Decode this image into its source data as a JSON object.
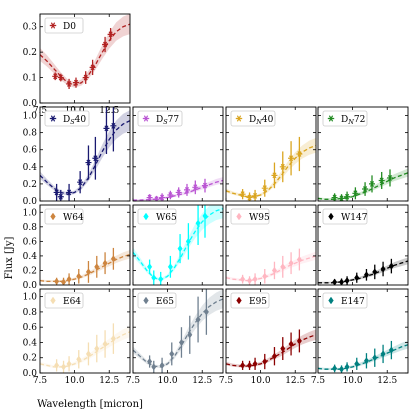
{
  "figure": {
    "ylabel": "Flux [Jy]",
    "xlabel": "Wavelength [micron]",
    "xticks": [
      "7.5",
      "10.0",
      "12.5"
    ],
    "yticks_top": [
      "0.0",
      "0.1",
      "0.2",
      "0.3"
    ],
    "yticks": [
      "0.0",
      "0.2",
      "0.4",
      "0.6",
      "0.8",
      "1.0"
    ]
  },
  "chart_data": [
    {
      "type": "scatter",
      "legend": "D0",
      "label": "D0",
      "marker": "x",
      "color": "#b22222",
      "xlim": [
        7.5,
        14
      ],
      "ylim": [
        0,
        0.35
      ],
      "x": [
        8.6,
        9.0,
        9.6,
        10.1,
        10.8,
        11.3,
        12.2,
        12.6
      ],
      "y": [
        0.105,
        0.1,
        0.075,
        0.08,
        0.1,
        0.14,
        0.23,
        0.27
      ],
      "err": [
        0.015,
        0.015,
        0.02,
        0.02,
        0.025,
        0.03,
        0.03,
        0.025
      ],
      "model_x": [
        7.5,
        8,
        8.5,
        9,
        9.5,
        10,
        10.5,
        11,
        11.5,
        12,
        12.5,
        13,
        13.5,
        14
      ],
      "model_y": [
        0.19,
        0.165,
        0.135,
        0.105,
        0.08,
        0.07,
        0.08,
        0.11,
        0.15,
        0.2,
        0.245,
        0.28,
        0.3,
        0.31
      ]
    },
    {
      "type": "scatter",
      "legend": "D_S40",
      "label": "D$_S$40",
      "marker": "x",
      "color": "#191970",
      "xlim": [
        7.5,
        14
      ],
      "ylim": [
        0,
        1.1
      ],
      "x": [
        8.7,
        9.0,
        9.6,
        10.4,
        11.0,
        11.5,
        12.3,
        12.8
      ],
      "y": [
        0.1,
        0.05,
        0.1,
        0.22,
        0.45,
        0.5,
        0.85,
        0.88
      ],
      "err": [
        0.1,
        0.08,
        0.1,
        0.13,
        0.2,
        0.25,
        0.3,
        0.3
      ],
      "model_x": [
        7.5,
        8,
        8.5,
        9,
        9.5,
        10,
        10.5,
        11,
        11.5,
        12,
        12.5,
        13,
        13.5,
        14
      ],
      "model_y": [
        0.3,
        0.22,
        0.15,
        0.1,
        0.08,
        0.1,
        0.16,
        0.27,
        0.42,
        0.58,
        0.72,
        0.83,
        0.9,
        0.94
      ]
    },
    {
      "type": "scatter",
      "legend": "D_S77",
      "label": "D$_S$77",
      "marker": "x",
      "color": "#ba55d3",
      "xlim": [
        7.5,
        14
      ],
      "ylim": [
        0,
        1.1
      ],
      "x": [
        8.7,
        9.2,
        9.6,
        10.2,
        10.8,
        11.4,
        12.0,
        12.7
      ],
      "y": [
        0.04,
        0.02,
        0.04,
        0.07,
        0.1,
        0.13,
        0.16,
        0.18
      ],
      "err": [
        0.04,
        0.04,
        0.05,
        0.05,
        0.06,
        0.07,
        0.08,
        0.08
      ],
      "model_x": [
        7.5,
        8,
        8.5,
        9,
        9.5,
        10,
        10.5,
        11,
        11.5,
        12,
        12.5,
        13,
        13.5,
        14
      ],
      "model_y": [
        0.01,
        0.01,
        0.015,
        0.02,
        0.03,
        0.04,
        0.06,
        0.08,
        0.1,
        0.13,
        0.16,
        0.19,
        0.22,
        0.24
      ]
    },
    {
      "type": "scatter",
      "legend": "D_N40",
      "label": "D$_N$40",
      "marker": "x",
      "color": "#daa520",
      "xlim": [
        7.5,
        14
      ],
      "ylim": [
        0,
        1.1
      ],
      "x": [
        8.7,
        9.2,
        9.6,
        10.3,
        11.0,
        11.6,
        12.2,
        12.8
      ],
      "y": [
        0.08,
        0.04,
        0.06,
        0.15,
        0.3,
        0.4,
        0.5,
        0.55
      ],
      "err": [
        0.06,
        0.06,
        0.07,
        0.1,
        0.15,
        0.18,
        0.2,
        0.2
      ],
      "model_x": [
        7.5,
        8,
        8.5,
        9,
        9.5,
        10,
        10.5,
        11,
        11.5,
        12,
        12.5,
        13,
        13.5,
        14
      ],
      "model_y": [
        0.12,
        0.09,
        0.07,
        0.05,
        0.05,
        0.07,
        0.12,
        0.2,
        0.3,
        0.41,
        0.5,
        0.57,
        0.62,
        0.65
      ]
    },
    {
      "type": "scatter",
      "legend": "D_N72",
      "label": "D$_N$72",
      "marker": "x",
      "color": "#228b22",
      "xlim": [
        7.5,
        14
      ],
      "ylim": [
        0,
        1.1
      ],
      "x": [
        8.7,
        9.2,
        9.6,
        10.2,
        10.9,
        11.4,
        12.1,
        12.7
      ],
      "y": [
        0.04,
        0.03,
        0.05,
        0.09,
        0.14,
        0.2,
        0.24,
        0.27
      ],
      "err": [
        0.05,
        0.05,
        0.06,
        0.07,
        0.08,
        0.1,
        0.1,
        0.1
      ],
      "model_x": [
        7.5,
        8,
        8.5,
        9,
        9.5,
        10,
        10.5,
        11,
        11.5,
        12,
        12.5,
        13,
        13.5,
        14
      ],
      "model_y": [
        0.03,
        0.02,
        0.02,
        0.025,
        0.035,
        0.05,
        0.08,
        0.11,
        0.15,
        0.19,
        0.23,
        0.27,
        0.3,
        0.33
      ]
    },
    {
      "type": "scatter",
      "legend": "W64",
      "label": "W64",
      "marker": "diamond",
      "color": "#cd853f",
      "xlim": [
        7.5,
        14
      ],
      "ylim": [
        0,
        1.1
      ],
      "x": [
        8.7,
        9.2,
        9.6,
        10.3,
        11.0,
        11.6,
        12.2,
        12.8
      ],
      "y": [
        0.05,
        0.04,
        0.08,
        0.12,
        0.18,
        0.25,
        0.3,
        0.36
      ],
      "err": [
        0.05,
        0.06,
        0.08,
        0.1,
        0.15,
        0.15,
        0.15,
        0.15
      ],
      "model_x": [
        7.5,
        8,
        8.5,
        9,
        9.5,
        10,
        10.5,
        11,
        11.5,
        12,
        12.5,
        13,
        13.5,
        14
      ],
      "model_y": [
        0.06,
        0.05,
        0.05,
        0.05,
        0.06,
        0.08,
        0.11,
        0.15,
        0.2,
        0.25,
        0.3,
        0.35,
        0.39,
        0.42
      ]
    },
    {
      "type": "scatter",
      "legend": "W65",
      "label": "W65",
      "marker": "diamond",
      "color": "#00ffff",
      "xlim": [
        7.5,
        14
      ],
      "ylim": [
        0,
        1.1
      ],
      "x": [
        8.7,
        9.0,
        9.5,
        10.2,
        10.9,
        11.5,
        12.2,
        12.7
      ],
      "y": [
        0.25,
        0.1,
        0.08,
        0.25,
        0.5,
        0.6,
        0.85,
        0.95
      ],
      "err": [
        0.1,
        0.1,
        0.1,
        0.15,
        0.2,
        0.25,
        0.3,
        0.3
      ],
      "model_x": [
        7.5,
        8,
        8.5,
        9,
        9.5,
        10,
        10.5,
        11,
        11.5,
        12,
        12.5,
        13,
        13.5,
        14
      ],
      "model_y": [
        0.45,
        0.33,
        0.2,
        0.1,
        0.07,
        0.12,
        0.24,
        0.4,
        0.58,
        0.74,
        0.87,
        0.96,
        1.02,
        1.05
      ]
    },
    {
      "type": "scatter",
      "legend": "W95",
      "label": "W95",
      "marker": "diamond",
      "color": "#ffb6c1",
      "xlim": [
        7.5,
        14
      ],
      "ylim": [
        0,
        1.1
      ],
      "x": [
        8.7,
        9.2,
        9.6,
        10.3,
        11.0,
        11.6,
        12.2,
        12.8
      ],
      "y": [
        0.08,
        0.06,
        0.08,
        0.12,
        0.2,
        0.25,
        0.3,
        0.35
      ],
      "err": [
        0.06,
        0.06,
        0.08,
        0.1,
        0.12,
        0.15,
        0.15,
        0.15
      ],
      "model_x": [
        7.5,
        8,
        8.5,
        9,
        9.5,
        10,
        10.5,
        11,
        11.5,
        12,
        12.5,
        13,
        13.5,
        14
      ],
      "model_y": [
        0.1,
        0.08,
        0.07,
        0.06,
        0.07,
        0.09,
        0.12,
        0.16,
        0.21,
        0.26,
        0.3,
        0.34,
        0.37,
        0.4
      ]
    },
    {
      "type": "scatter",
      "legend": "W147",
      "label": "W147",
      "marker": "diamond",
      "color": "#000000",
      "xlim": [
        7.5,
        14
      ],
      "ylim": [
        0,
        1.1
      ],
      "x": [
        8.7,
        9.2,
        9.6,
        10.3,
        11.0,
        11.6,
        12.2,
        12.8
      ],
      "y": [
        0.04,
        0.04,
        0.06,
        0.1,
        0.14,
        0.18,
        0.22,
        0.26
      ],
      "err": [
        0.04,
        0.05,
        0.06,
        0.07,
        0.08,
        0.1,
        0.1,
        0.1
      ],
      "model_x": [
        7.5,
        8,
        8.5,
        9,
        9.5,
        10,
        10.5,
        11,
        11.5,
        12,
        12.5,
        13,
        13.5,
        14
      ],
      "model_y": [
        0.03,
        0.03,
        0.03,
        0.04,
        0.05,
        0.07,
        0.09,
        0.12,
        0.15,
        0.19,
        0.23,
        0.27,
        0.3,
        0.33
      ]
    },
    {
      "type": "scatter",
      "legend": "E64",
      "label": "E64",
      "marker": "diamond",
      "color": "#f5deb3",
      "xlim": [
        7.5,
        14
      ],
      "ylim": [
        0,
        1.1
      ],
      "x": [
        8.7,
        9.2,
        9.6,
        10.3,
        11.0,
        11.6,
        12.2,
        12.8
      ],
      "y": [
        0.1,
        0.08,
        0.12,
        0.18,
        0.25,
        0.32,
        0.38,
        0.45
      ],
      "err": [
        0.08,
        0.08,
        0.1,
        0.12,
        0.15,
        0.18,
        0.18,
        0.2
      ],
      "model_x": [
        7.5,
        8,
        8.5,
        9,
        9.5,
        10,
        10.5,
        11,
        11.5,
        12,
        12.5,
        13,
        13.5,
        14
      ],
      "model_y": [
        0.12,
        0.1,
        0.08,
        0.08,
        0.09,
        0.12,
        0.16,
        0.21,
        0.27,
        0.33,
        0.39,
        0.45,
        0.5,
        0.54
      ]
    },
    {
      "type": "scatter",
      "legend": "E65",
      "label": "E65",
      "marker": "diamond",
      "color": "#708090",
      "xlim": [
        7.5,
        14
      ],
      "ylim": [
        0,
        1.1
      ],
      "x": [
        8.7,
        9.0,
        9.6,
        10.3,
        11.0,
        11.6,
        12.2,
        12.8
      ],
      "y": [
        0.15,
        0.08,
        0.1,
        0.25,
        0.4,
        0.5,
        0.7,
        0.8
      ],
      "err": [
        0.08,
        0.08,
        0.1,
        0.15,
        0.2,
        0.25,
        0.3,
        0.3
      ],
      "model_x": [
        7.5,
        8,
        8.5,
        9,
        9.5,
        10,
        10.5,
        11,
        11.5,
        12,
        12.5,
        13,
        13.5,
        14
      ],
      "model_y": [
        0.3,
        0.22,
        0.14,
        0.09,
        0.08,
        0.12,
        0.22,
        0.36,
        0.52,
        0.66,
        0.78,
        0.87,
        0.93,
        0.97
      ]
    },
    {
      "type": "scatter",
      "legend": "E95",
      "label": "E95",
      "marker": "diamond",
      "color": "#8b0000",
      "xlim": [
        7.5,
        14
      ],
      "ylim": [
        0,
        1.1
      ],
      "x": [
        8.7,
        9.2,
        9.6,
        10.3,
        11.0,
        11.6,
        12.2,
        12.8
      ],
      "y": [
        0.1,
        0.1,
        0.12,
        0.15,
        0.22,
        0.32,
        0.38,
        0.42
      ],
      "err": [
        0.06,
        0.06,
        0.08,
        0.1,
        0.12,
        0.15,
        0.15,
        0.15
      ],
      "model_x": [
        7.5,
        8,
        8.5,
        9,
        9.5,
        10,
        10.5,
        11,
        11.5,
        12,
        12.5,
        13,
        13.5,
        14
      ],
      "model_y": [
        0.12,
        0.1,
        0.09,
        0.09,
        0.1,
        0.12,
        0.16,
        0.21,
        0.26,
        0.32,
        0.38,
        0.43,
        0.47,
        0.5
      ]
    },
    {
      "type": "scatter",
      "legend": "E147",
      "label": "E147",
      "marker": "diamond",
      "color": "#008080",
      "xlim": [
        7.5,
        14
      ],
      "ylim": [
        0,
        1.1
      ],
      "x": [
        8.7,
        9.2,
        9.6,
        10.3,
        11.0,
        11.6,
        12.2,
        12.8
      ],
      "y": [
        0.06,
        0.05,
        0.08,
        0.12,
        0.16,
        0.2,
        0.25,
        0.3
      ],
      "err": [
        0.05,
        0.05,
        0.06,
        0.08,
        0.1,
        0.12,
        0.12,
        0.12
      ],
      "model_x": [
        7.5,
        8,
        8.5,
        9,
        9.5,
        10,
        10.5,
        11,
        11.5,
        12,
        12.5,
        13,
        13.5,
        14
      ],
      "model_y": [
        0.06,
        0.05,
        0.05,
        0.05,
        0.06,
        0.08,
        0.11,
        0.14,
        0.18,
        0.22,
        0.26,
        0.3,
        0.34,
        0.37
      ]
    }
  ]
}
